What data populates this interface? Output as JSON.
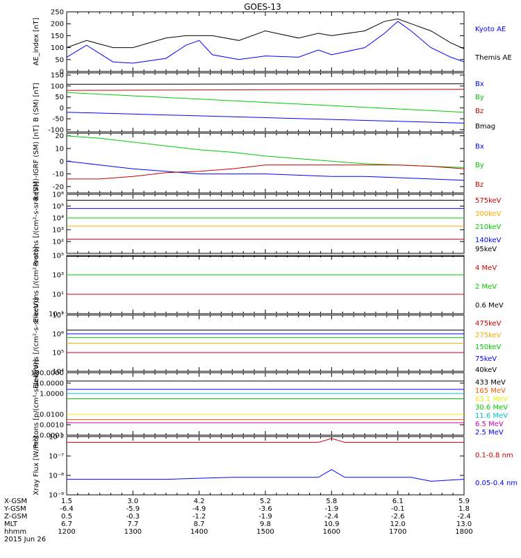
{
  "title": "GOES-13",
  "colors": {
    "black": "#000000",
    "blue": "#0000ff",
    "green": "#00cc00",
    "red": "#cc0000",
    "orange": "#ffaa00",
    "cyan": "#00bbcc",
    "yellow": "#eeee00",
    "orangered": "#ff5500",
    "magenta": "#cc00aa"
  },
  "time_axis": {
    "ticks": [
      "1200",
      "1300",
      "1400",
      "1500",
      "1600",
      "1700",
      "1800"
    ],
    "rows": [
      {
        "label": "X-GSM",
        "values": [
          "1.5",
          "3.0",
          "4.2",
          "5.2",
          "5.8",
          "6.1",
          "5.9"
        ]
      },
      {
        "label": "Y-GSM",
        "values": [
          "-6.4",
          "-5.9",
          "-4.9",
          "-3.6",
          "-1.9",
          "-0.1",
          "1.8"
        ]
      },
      {
        "label": "Z-GSM",
        "values": [
          "0.5",
          "-0.3",
          "-1.2",
          "-1.9",
          "-2.4",
          "-2.6",
          "-2.4"
        ]
      },
      {
        "label": "MLT",
        "values": [
          "6.7",
          "7.7",
          "8.7",
          "9.8",
          "10.9",
          "12.0",
          "13.0"
        ]
      },
      {
        "label": "hhmm",
        "values": [
          "1200",
          "1300",
          "1400",
          "1500",
          "1600",
          "1700",
          "1800"
        ]
      }
    ],
    "date": "2015 Jun 26"
  },
  "chart_data": [
    {
      "type": "line",
      "ylabel": "AE_index [nT]",
      "scale": "linear",
      "ylim": [
        0,
        250
      ],
      "yticks": [
        "0",
        "50",
        "100",
        "150",
        "200",
        "250"
      ],
      "series": [
        {
          "name": "Kyoto AE",
          "color": "blue",
          "points": [
            [
              12.0,
              60
            ],
            [
              12.3,
              110
            ],
            [
              12.7,
              40
            ],
            [
              13.0,
              35
            ],
            [
              13.5,
              55
            ],
            [
              13.8,
              110
            ],
            [
              14.0,
              130
            ],
            [
              14.2,
              70
            ],
            [
              14.6,
              50
            ],
            [
              15.0,
              65
            ],
            [
              15.5,
              60
            ],
            [
              15.8,
              90
            ],
            [
              16.0,
              70
            ],
            [
              16.5,
              100
            ],
            [
              16.8,
              160
            ],
            [
              17.0,
              210
            ],
            [
              17.2,
              170
            ],
            [
              17.5,
              100
            ],
            [
              17.8,
              60
            ],
            [
              18.0,
              40
            ]
          ]
        },
        {
          "name": "Themis AE",
          "color": "black",
          "points": [
            [
              12.0,
              100
            ],
            [
              12.3,
              130
            ],
            [
              12.7,
              100
            ],
            [
              13.0,
              100
            ],
            [
              13.5,
              140
            ],
            [
              13.8,
              150
            ],
            [
              14.2,
              150
            ],
            [
              14.6,
              130
            ],
            [
              15.0,
              170
            ],
            [
              15.5,
              140
            ],
            [
              15.8,
              160
            ],
            [
              16.0,
              150
            ],
            [
              16.5,
              170
            ],
            [
              16.8,
              210
            ],
            [
              17.0,
              220
            ],
            [
              17.2,
              200
            ],
            [
              17.5,
              170
            ],
            [
              17.8,
              120
            ],
            [
              18.0,
              95
            ]
          ]
        }
      ]
    },
    {
      "type": "line",
      "ylabel": "B (SM) [nT]",
      "scale": "linear",
      "ylim": [
        -110,
        160
      ],
      "yticks": [
        "-100",
        "-50",
        "0",
        "50",
        "100",
        "150"
      ],
      "series": [
        {
          "name": "Bx",
          "color": "blue",
          "points": [
            [
              12.0,
              -20
            ],
            [
              18.0,
              -70
            ]
          ]
        },
        {
          "name": "By",
          "color": "green",
          "points": [
            [
              12.0,
              70
            ],
            [
              18.0,
              -20
            ]
          ]
        },
        {
          "name": "Bz",
          "color": "red",
          "points": [
            [
              12.0,
              80
            ],
            [
              18.0,
              85
            ]
          ]
        },
        {
          "name": "Bmag",
          "color": "black",
          "points": [
            [
              12.0,
              108
            ],
            [
              18.0,
              110
            ]
          ]
        }
      ]
    },
    {
      "type": "line",
      "ylabel": "B (SM)-IGRF (SM) [nT]",
      "scale": "linear",
      "ylim": [
        -25,
        22
      ],
      "yticks": [
        "-20",
        "-10",
        "0",
        "10",
        "20"
      ],
      "series": [
        {
          "name": "Bx",
          "color": "blue",
          "points": [
            [
              12.0,
              0
            ],
            [
              12.5,
              -3
            ],
            [
              13.0,
              -6
            ],
            [
              13.5,
              -8
            ],
            [
              14.0,
              -10
            ],
            [
              14.5,
              -10
            ],
            [
              15.0,
              -10
            ],
            [
              15.5,
              -11
            ],
            [
              16.0,
              -12
            ],
            [
              16.5,
              -12
            ],
            [
              17.0,
              -13
            ],
            [
              17.5,
              -14
            ],
            [
              18.0,
              -15
            ]
          ]
        },
        {
          "name": "By",
          "color": "green",
          "points": [
            [
              12.0,
              20
            ],
            [
              12.5,
              18
            ],
            [
              13.0,
              15
            ],
            [
              13.5,
              12
            ],
            [
              14.0,
              9
            ],
            [
              14.5,
              7
            ],
            [
              15.0,
              4
            ],
            [
              15.5,
              2
            ],
            [
              16.0,
              0
            ],
            [
              16.5,
              -2
            ],
            [
              17.0,
              -3
            ],
            [
              17.5,
              -4
            ],
            [
              18.0,
              -5
            ]
          ]
        },
        {
          "name": "Bz",
          "color": "red",
          "points": [
            [
              12.0,
              -14
            ],
            [
              12.5,
              -14
            ],
            [
              13.0,
              -12
            ],
            [
              13.5,
              -9
            ],
            [
              14.0,
              -8
            ],
            [
              14.5,
              -6
            ],
            [
              15.0,
              -3
            ],
            [
              15.5,
              -3
            ],
            [
              16.0,
              -3
            ],
            [
              16.5,
              -3
            ],
            [
              17.0,
              -3
            ],
            [
              17.5,
              -4
            ],
            [
              18.0,
              -6
            ]
          ]
        }
      ]
    },
    {
      "type": "line",
      "ylabel": "Protons [/(cm²-s-sr-keV)]",
      "scale": "log",
      "ylim": [
        1,
        6
      ],
      "yticks": [
        "10²",
        "10³",
        "10⁴",
        "10⁵",
        "10⁶"
      ],
      "ytick_values": [
        2,
        3,
        4,
        5,
        6
      ],
      "series": [
        {
          "name": "575keV",
          "color": "red",
          "points": [
            [
              12.0,
              2.2
            ],
            [
              18.0,
              2.2
            ]
          ]
        },
        {
          "name": "300keV",
          "color": "orange",
          "points": [
            [
              12.0,
              3.3
            ],
            [
              18.0,
              3.3
            ]
          ]
        },
        {
          "name": "210keV",
          "color": "green",
          "points": [
            [
              12.0,
              4.0
            ],
            [
              18.0,
              4.0
            ]
          ]
        },
        {
          "name": "140keV",
          "color": "blue",
          "points": [
            [
              12.0,
              4.8
            ],
            [
              18.0,
              4.8
            ]
          ]
        },
        {
          "name": "95keV",
          "color": "black",
          "points": [
            [
              12.0,
              5.5
            ],
            [
              18.0,
              5.5
            ]
          ]
        }
      ]
    },
    {
      "type": "line",
      "ylabel": "Electrons [/(cm²-s-sr)]",
      "scale": "log",
      "ylim": [
        -1,
        5
      ],
      "yticks": [
        "10⁻¹",
        "10¹",
        "10³",
        "10⁵"
      ],
      "ytick_values": [
        -1,
        1,
        3,
        5
      ],
      "series": [
        {
          "name": "4 MeV",
          "color": "red",
          "points": [
            [
              12.0,
              1.0
            ],
            [
              18.0,
              1.0
            ]
          ]
        },
        {
          "name": "2 MeV",
          "color": "green",
          "points": [
            [
              12.0,
              3.0
            ],
            [
              18.0,
              3.0
            ]
          ]
        },
        {
          "name": "0.6 MeV",
          "color": "black",
          "points": [
            [
              12.0,
              4.9
            ],
            [
              18.0,
              4.9
            ]
          ]
        }
      ]
    },
    {
      "type": "line",
      "ylabel": "Electrons [/(cm²-s-sr-keV)]",
      "scale": "log",
      "ylim": [
        4,
        7
      ],
      "yticks": [
        "10⁴",
        "10⁵",
        "10⁶",
        "10⁷"
      ],
      "ytick_values": [
        4,
        5,
        6,
        7
      ],
      "series": [
        {
          "name": "475keV",
          "color": "red",
          "points": [
            [
              12.0,
              5.0
            ],
            [
              18.0,
              5.0
            ]
          ]
        },
        {
          "name": "275keV",
          "color": "orange",
          "points": [
            [
              12.0,
              5.5
            ],
            [
              18.0,
              5.5
            ]
          ]
        },
        {
          "name": "150keV",
          "color": "green",
          "points": [
            [
              12.0,
              5.8
            ],
            [
              18.0,
              5.8
            ]
          ]
        },
        {
          "name": "75keV",
          "color": "blue",
          "points": [
            [
              12.0,
              6.0
            ],
            [
              18.0,
              6.0
            ]
          ]
        },
        {
          "name": "40keV",
          "color": "black",
          "points": [
            [
              12.0,
              6.2
            ],
            [
              18.0,
              6.2
            ]
          ]
        }
      ]
    },
    {
      "type": "line",
      "ylabel": "Protons [p/(cm²-s-sr-keV)]",
      "scale": "log",
      "ylim": [
        -4,
        2
      ],
      "yticks": [
        "0.0001",
        "0.0010",
        "0.0100",
        "1.0000",
        "10.0000",
        "100.0000"
      ],
      "ytick_values": [
        -4,
        -3,
        -2,
        0,
        1,
        2
      ],
      "series": [
        {
          "name": "433 MeV",
          "color": "black",
          "points": [
            [
              12.0,
              1.2
            ],
            [
              18.0,
              1.2
            ]
          ]
        },
        {
          "name": "165 MeV",
          "color": "orangered",
          "points": [
            [
              12.0,
              -2.5
            ],
            [
              18.0,
              -2.5
            ]
          ]
        },
        {
          "name": "63.1 MeV",
          "color": "yellow",
          "points": [
            [
              12.0,
              -2.0
            ],
            [
              18.0,
              -2.0
            ]
          ]
        },
        {
          "name": "30.6 MeV",
          "color": "green",
          "points": [
            [
              12.0,
              -0.5
            ],
            [
              18.0,
              -0.5
            ]
          ]
        },
        {
          "name": "11.6 MeV",
          "color": "cyan",
          "points": [
            [
              12.0,
              0.0
            ],
            [
              18.0,
              0.0
            ]
          ]
        },
        {
          "name": "6.5 MeV",
          "color": "magenta",
          "points": [
            [
              12.0,
              -2.8
            ],
            [
              18.0,
              -2.8
            ]
          ]
        },
        {
          "name": "2.5 MeV",
          "color": "blue",
          "points": [
            [
              12.0,
              0.4
            ],
            [
              18.0,
              0.4
            ]
          ]
        }
      ]
    },
    {
      "type": "line",
      "ylabel": "Xray Flux [W/m²]",
      "scale": "log",
      "ylim": [
        -9,
        -6
      ],
      "yticks": [
        "10⁻⁹",
        "10⁻⁸",
        "10⁻⁷",
        "10⁻⁶"
      ],
      "ytick_values": [
        -9,
        -8,
        -7,
        -6
      ],
      "series": [
        {
          "name": "0.1-0.8 nm",
          "color": "red",
          "points": [
            [
              12.0,
              -6.3
            ],
            [
              15.8,
              -6.3
            ],
            [
              16.0,
              -6.1
            ],
            [
              16.2,
              -6.3
            ],
            [
              18.0,
              -6.3
            ]
          ]
        },
        {
          "name": "0.05-0.4 nm",
          "color": "blue",
          "points": [
            [
              12.0,
              -8.2
            ],
            [
              13.5,
              -8.2
            ],
            [
              14.5,
              -8.1
            ],
            [
              15.8,
              -8.1
            ],
            [
              16.0,
              -7.7
            ],
            [
              16.2,
              -8.1
            ],
            [
              17.2,
              -8.1
            ],
            [
              17.5,
              -8.3
            ],
            [
              18.0,
              -8.2
            ]
          ]
        }
      ]
    }
  ]
}
